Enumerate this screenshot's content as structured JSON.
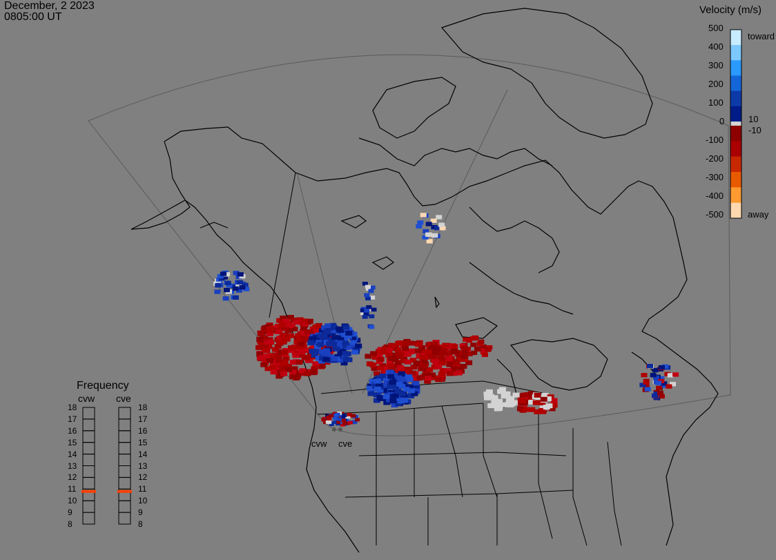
{
  "header": {
    "date": "December, 2 2023",
    "time": "0805:00 UT"
  },
  "velocity_legend": {
    "title": "Velocity (m/s)",
    "ticks": [
      "500",
      "400",
      "300",
      "200",
      "100",
      "0",
      "-100",
      "-200",
      "-300",
      "-400",
      "-500"
    ],
    "inner_labels": [
      "10",
      "-10"
    ],
    "end_labels": {
      "top": "toward",
      "bottom": "away"
    },
    "colors": [
      "#c8ecff",
      "#7cc8ff",
      "#2a9aff",
      "#1466d8",
      "#0c3aa8",
      "#001c88",
      "#8c0000",
      "#aa0000",
      "#c82800",
      "#e85a00",
      "#ff9a30",
      "#ffd8b0"
    ]
  },
  "frequency_panel": {
    "title": "Frequency",
    "radars": [
      "cvw",
      "cve"
    ],
    "ticks": [
      "18",
      "17",
      "16",
      "15",
      "14",
      "13",
      "12",
      "11",
      "10",
      "9",
      "8"
    ],
    "selected_mhz": [
      10.8,
      10.8
    ],
    "marker_color": "#ff4000"
  },
  "site_labels": [
    "cvw",
    "cve"
  ],
  "colors": {
    "background": "#808080",
    "land": "#8c8c8c",
    "coast": "#000000",
    "toward": "#1a3fbf",
    "away": "#b00000",
    "ground_scatter": "#d3d3d3"
  }
}
